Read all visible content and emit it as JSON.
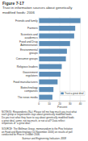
{
  "chart_data": {
    "type": "bar",
    "orientation": "horizontal",
    "title": "Figure 7-17",
    "subtitle": "Trust in information sources about genetically\nmodified foods: 2006",
    "categories": [
      "Friends and family",
      "Farmers",
      "Scientists and\nacademics",
      "Food and Drug\nAdministration",
      "Environmental\ngroups",
      "Consumer groups",
      "Religious leaders",
      "Government\nregulators",
      "Food manufacturers",
      "Biotechnology\ncompanies",
      "The news media"
    ],
    "series": [
      {
        "name": "Trust a great deal",
        "color": "#5b8db8",
        "values": [
          40,
          35,
          34,
          30,
          27,
          26,
          22,
          21,
          18,
          14,
          13
        ]
      }
    ],
    "xlabel": "Percent",
    "xlim": [
      0,
      45
    ],
    "xticks": [
      0,
      10,
      20,
      30,
      40
    ],
    "grid": true,
    "legend": "lower right",
    "notes": "NOTE(S): Respondents (N=): Please tell me how much you trust what\neach group or organization says about genetically modified foods.\nDo you trust what they have to say about genetically modified foods\na great deal, some, not too much, or not at all? Data reflect\nresponses of \"a great deal.\"\n\nSOURCE: The Mellman Group, memorandum to the Pew Initiative\non Food and Biotechnology (10 November 2006) on results of poll\nconducted for Pew in October 2006.",
    "source": "Science and Engineering Indicators 2008"
  }
}
